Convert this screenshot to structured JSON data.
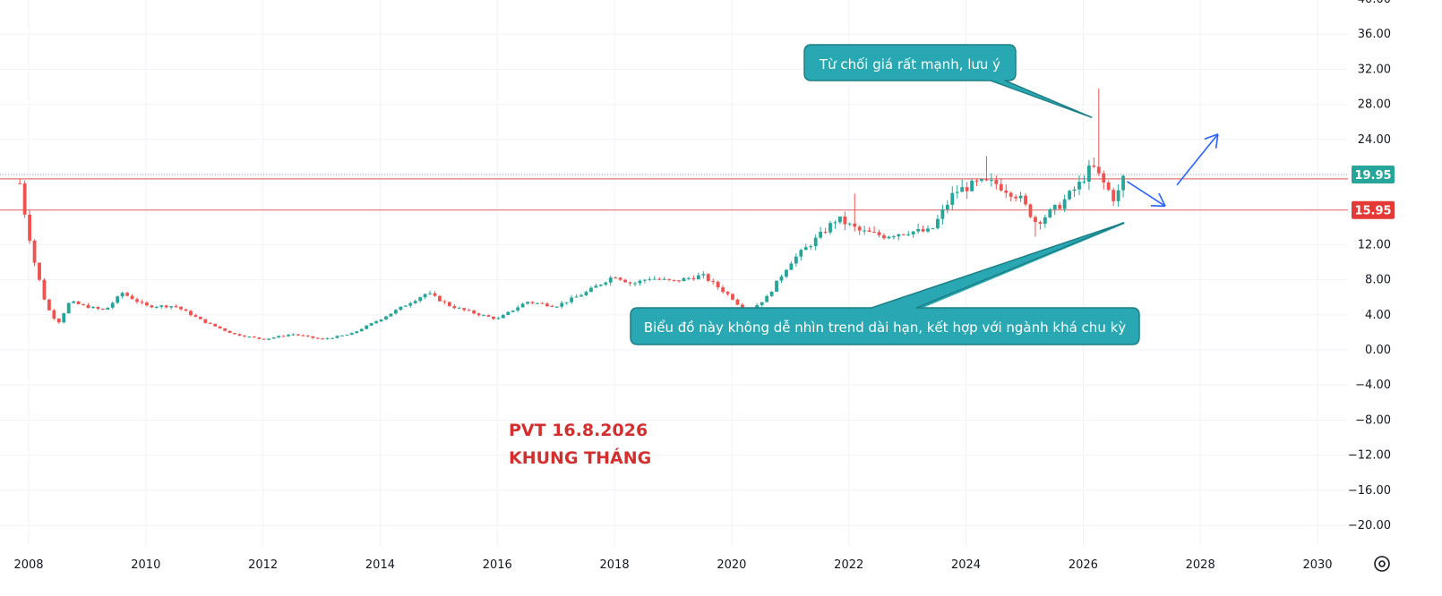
{
  "colors": {
    "up": "#26a69a",
    "down": "#ef5350",
    "grid": "#f0f3fa",
    "axis_text": "#131722",
    "callout_fill": "#29a8b3",
    "callout_border": "#1d7f86",
    "title": "#d32f2f",
    "arrow": "#2962ff",
    "price_tag_current": "#26a69a",
    "price_tag_support": "#e53935",
    "support_line": "#e57373"
  },
  "chart_data": {
    "type": "candlestick",
    "title_lines": [
      "PVT 16.8.2026",
      "KHUNG THÁNG"
    ],
    "x_ticks": [
      "2008",
      "2010",
      "2012",
      "2014",
      "2016",
      "2018",
      "2020",
      "2022",
      "2024",
      "2026",
      "2028",
      "2030"
    ],
    "x_range": [
      2007.6,
      2031.2
    ],
    "y_range": [
      -22.5,
      40
    ],
    "y_ticks": [
      "40.00",
      "36.00",
      "32.00",
      "28.00",
      "24.00",
      "20.00",
      "16.00",
      "12.00",
      "8.00",
      "4.00",
      "0.00",
      "−4.00",
      "−8.00",
      "−12.00",
      "−16.00",
      "−20.00"
    ],
    "y_tick_values": [
      40,
      36,
      32,
      28,
      24,
      20,
      16,
      12,
      8,
      4,
      0,
      -4,
      -8,
      -12,
      -16,
      -20
    ],
    "price_tags": [
      {
        "label": "19.95",
        "value": 19.95,
        "kind": "current"
      },
      {
        "label": "15.95",
        "value": 15.95,
        "kind": "support"
      }
    ],
    "horizontal_lines": [
      19.5,
      15.95
    ],
    "close_keypoints": [
      [
        2007.85,
        19
      ],
      [
        2007.95,
        15
      ],
      [
        2008.1,
        10
      ],
      [
        2008.3,
        5
      ],
      [
        2008.5,
        3
      ],
      [
        2008.7,
        5.5
      ],
      [
        2008.95,
        5
      ],
      [
        2009.3,
        4.5
      ],
      [
        2009.6,
        6.5
      ],
      [
        2010.0,
        5
      ],
      [
        2010.5,
        5
      ],
      [
        2011.0,
        3.2
      ],
      [
        2011.5,
        1.8
      ],
      [
        2012.0,
        1.2
      ],
      [
        2012.5,
        1.8
      ],
      [
        2013.0,
        1.2
      ],
      [
        2013.5,
        1.8
      ],
      [
        2014.0,
        3.5
      ],
      [
        2014.4,
        5
      ],
      [
        2014.8,
        6.5
      ],
      [
        2015.2,
        5
      ],
      [
        2015.6,
        4.2
      ],
      [
        2016.0,
        3.5
      ],
      [
        2016.5,
        5.5
      ],
      [
        2017.0,
        5
      ],
      [
        2017.5,
        6.5
      ],
      [
        2018.0,
        8.5
      ],
      [
        2018.3,
        7.5
      ],
      [
        2018.6,
        8.2
      ],
      [
        2019.0,
        7.8
      ],
      [
        2019.5,
        8.5
      ],
      [
        2020.0,
        6
      ],
      [
        2020.25,
        4.2
      ],
      [
        2020.6,
        6
      ],
      [
        2021.0,
        10
      ],
      [
        2021.5,
        13
      ],
      [
        2021.8,
        15
      ],
      [
        2022.2,
        13.5
      ],
      [
        2022.6,
        13
      ],
      [
        2023.0,
        13.5
      ],
      [
        2023.4,
        13.5
      ],
      [
        2023.8,
        18
      ],
      [
        2024.2,
        19
      ],
      [
        2024.5,
        19
      ],
      [
        2024.9,
        17.5
      ],
      [
        2025.2,
        14.5
      ],
      [
        2025.6,
        16.5
      ],
      [
        2025.95,
        19
      ],
      [
        2026.15,
        21
      ],
      [
        2026.35,
        19
      ],
      [
        2026.55,
        17
      ],
      [
        2026.7,
        19.95
      ]
    ],
    "wick_spikes": [
      [
        2026.25,
        29.8
      ],
      [
        2022.1,
        17.8
      ],
      [
        2024.35,
        22.1
      ],
      [
        2020.25,
        3.2
      ],
      [
        2025.2,
        12.9
      ]
    ],
    "annotations": [
      {
        "text": "Từ chối giá rất mạnh, lưu ý",
        "anchor": [
          2026.15,
          26.5
        ]
      },
      {
        "text": "Biểu đồ này không dễ nhìn trend dài hạn, kết hợp với ngành khá chu kỳ",
        "anchor": [
          2023.0,
          4.2
        ]
      }
    ],
    "trendline": [
      [
        2023.0,
        4.2
      ],
      [
        2026.7,
        14.5
      ]
    ],
    "arrows": [
      {
        "from": [
          2026.75,
          19.2
        ],
        "to": [
          2027.4,
          16.4
        ]
      },
      {
        "from": [
          2027.6,
          18.8
        ],
        "to": [
          2028.3,
          24.6
        ]
      }
    ],
    "grid": true
  },
  "ui": {
    "settings_icon": "gear-icon"
  }
}
